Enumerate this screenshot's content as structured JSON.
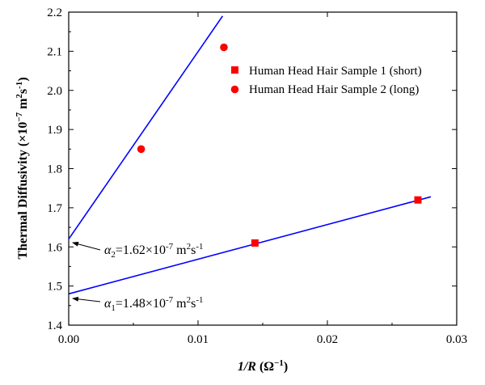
{
  "chart_data": {
    "type": "scatter",
    "xlabel_prefix": "1/R",
    "xlabel_unit": "(Ω",
    "xlabel_unit_exp": "−1",
    "xlabel_unit_close": ")",
    "ylabel_main": "Thermal Diffusivity (×10",
    "ylabel_exp1": "−7",
    "ylabel_m": " m",
    "ylabel_exp2": "2",
    "ylabel_s": "s",
    "ylabel_exp3": "-1",
    "ylabel_close": ")",
    "xlim": [
      0.0,
      0.03
    ],
    "ylim": [
      1.4,
      2.2
    ],
    "xticks": [
      "0.00",
      "0.01",
      "0.02",
      "0.03"
    ],
    "yticks": [
      "1.4",
      "1.5",
      "1.6",
      "1.7",
      "1.8",
      "1.9",
      "2.0",
      "2.1",
      "2.2"
    ],
    "legend_position": "top-right",
    "marker_color": "#ff0000",
    "line_color": "#0000ff",
    "series": [
      {
        "name": "Human Head Hair Sample 1 (short)",
        "marker": "square",
        "points": [
          [
            0.0144,
            1.61
          ],
          [
            0.027,
            1.72
          ]
        ],
        "fit_line": [
          [
            0.0,
            1.48
          ],
          [
            0.028,
            1.728
          ]
        ]
      },
      {
        "name": "Human Head Hair Sample 2 (long)",
        "marker": "circle",
        "points": [
          [
            0.0056,
            1.85
          ],
          [
            0.012,
            2.11
          ]
        ],
        "fit_line": [
          [
            0.0,
            1.62
          ],
          [
            0.0119,
            2.19
          ]
        ]
      }
    ],
    "annotations": [
      {
        "symbol": "α",
        "sub": "2",
        "text": "=1.62×10",
        "exp": "-7",
        "unit_m": " m",
        "unit_exp_m": "2",
        "unit_s": "s",
        "unit_exp_s": "-1",
        "arrow_to": [
          0.0,
          1.61
        ]
      },
      {
        "symbol": "α",
        "sub": "1",
        "text": "=1.48×10",
        "exp": "-7",
        "unit_m": " m",
        "unit_exp_m": "2",
        "unit_s": "s",
        "unit_exp_s": "-1",
        "arrow_to": [
          0.0,
          1.475
        ]
      }
    ]
  }
}
